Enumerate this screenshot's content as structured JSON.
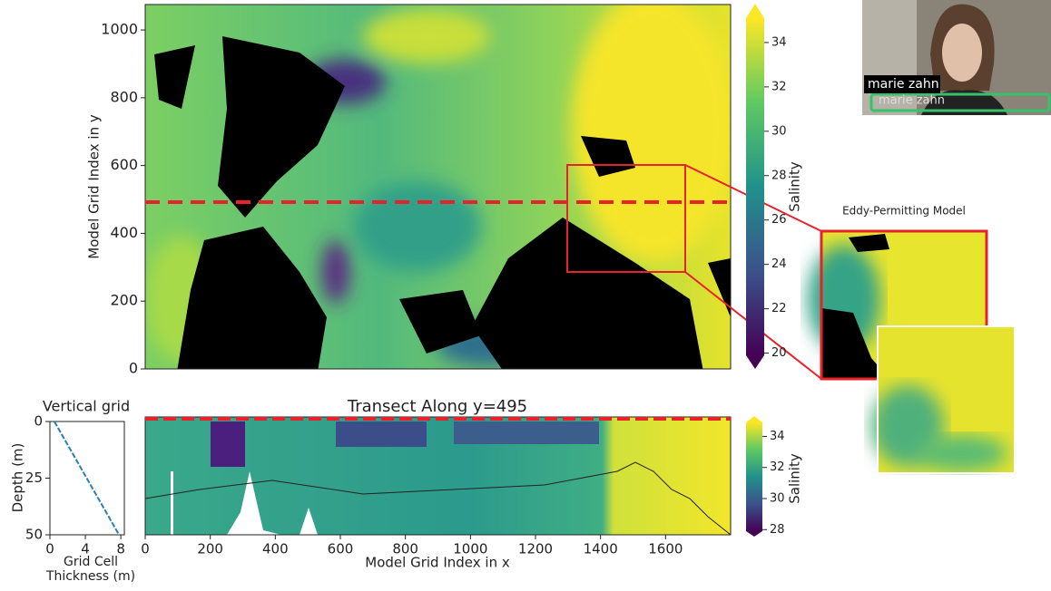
{
  "map": {
    "y_label": "Model Grid Index in y",
    "yticks": [
      0,
      200,
      400,
      600,
      800,
      1000
    ],
    "ylim": [
      0,
      1075
    ]
  },
  "colorbar_top": {
    "label": "Salinity",
    "ticks": [
      20,
      22,
      24,
      26,
      28,
      30,
      32,
      34
    ],
    "lim": [
      19.9,
      35.1
    ]
  },
  "inset": {
    "title": "Eddy-Permitting Model"
  },
  "vertical_grid": {
    "title": "Vertical grid",
    "y_label": "Depth (m)",
    "x_label_lines": [
      "Grid Cell",
      "Thickness (m)"
    ],
    "xticks": [
      0,
      4,
      8
    ],
    "xlim": [
      0,
      8.4
    ],
    "yticks": [
      0,
      25,
      50
    ],
    "ylim": [
      0,
      50
    ],
    "thickness": [
      0.5,
      7.8
    ],
    "depth": [
      0,
      50
    ]
  },
  "transect": {
    "title": "Transect Along y=495",
    "x_label": "Model Grid Index in x",
    "xticks": [
      0,
      200,
      400,
      600,
      800,
      1000,
      1200,
      1400,
      1600
    ],
    "xlim": [
      0,
      1800
    ]
  },
  "colorbar_bottom": {
    "label": "Salinity",
    "ticks": [
      28,
      30,
      32,
      34
    ],
    "lim": [
      27.9,
      34.9
    ]
  },
  "video": {
    "name": "marie zahn",
    "name_faded": "marie zahn"
  }
}
